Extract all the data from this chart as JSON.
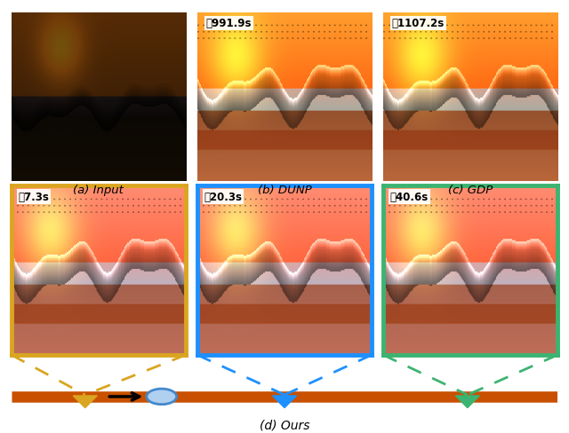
{
  "title": "(d) Ours",
  "top_labels": [
    "(a) Input",
    "(b) DUNP",
    "(c) GDP"
  ],
  "top_times": [
    "",
    "991.9s",
    "1107.2s"
  ],
  "bottom_times": [
    "7.3s",
    "20.3s",
    "40.6s"
  ],
  "border_colors_bottom": [
    "#DAA520",
    "#1E90FF",
    "#3CB371"
  ],
  "timeline_color": "#C85000",
  "bg_color": "#ffffff",
  "fig_width": 6.4,
  "fig_height": 4.89,
  "dpi": 100
}
